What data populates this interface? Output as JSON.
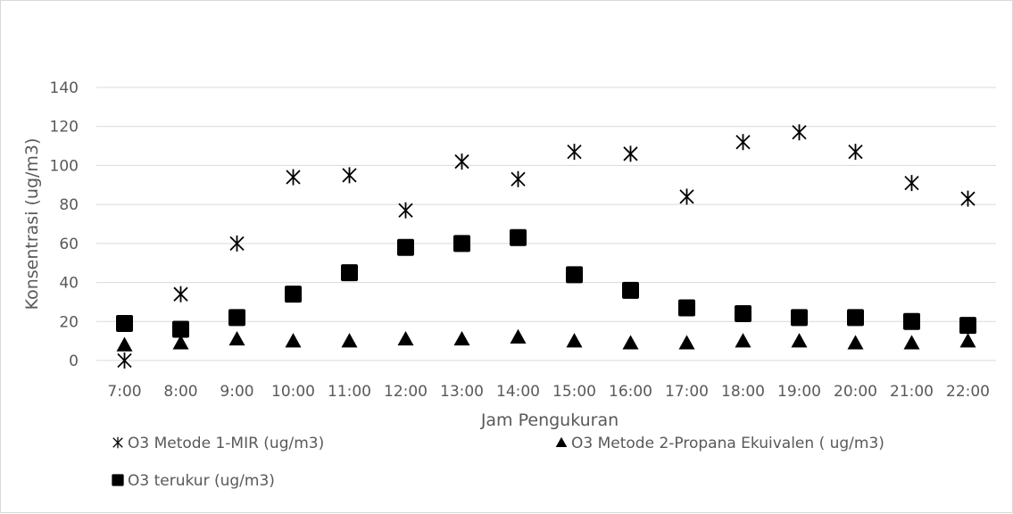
{
  "chart_data": {
    "type": "scatter",
    "title": "",
    "xlabel": "Jam Pengukuran",
    "ylabel": "Konsentrasi (ug/m3)",
    "ylim": [
      0,
      140
    ],
    "yticks": [
      "0",
      "20",
      "40",
      "60",
      "80",
      "100",
      "120",
      "140"
    ],
    "categories": [
      "7:00",
      "8:00",
      "9:00",
      "10:00",
      "11:00",
      "12:00",
      "13:00",
      "14:00",
      "15:00",
      "16:00",
      "17:00",
      "18:00",
      "19:00",
      "20:00",
      "21:00",
      "22:00"
    ],
    "grid": true,
    "legend_position": "bottom",
    "series": [
      {
        "name": "O3 Metode 1-MIR (ug/m3)",
        "marker": "asterisk",
        "color": "#000000",
        "values": [
          0,
          34,
          60,
          94,
          95,
          77,
          102,
          93,
          107,
          106,
          84,
          112,
          117,
          107,
          91,
          83
        ]
      },
      {
        "name": "O3 Metode 2-Propana Ekuivalen ( ug/m3)",
        "marker": "triangle",
        "color": "#000000",
        "values": [
          8,
          9,
          11,
          10,
          10,
          11,
          11,
          12,
          10,
          9,
          9,
          10,
          10,
          9,
          9,
          10
        ]
      },
      {
        "name": "O3 terukur (ug/m3)",
        "marker": "square",
        "color": "#000000",
        "values": [
          19,
          16,
          22,
          34,
          45,
          58,
          60,
          63,
          44,
          36,
          27,
          24,
          22,
          22,
          20,
          18
        ]
      }
    ]
  }
}
